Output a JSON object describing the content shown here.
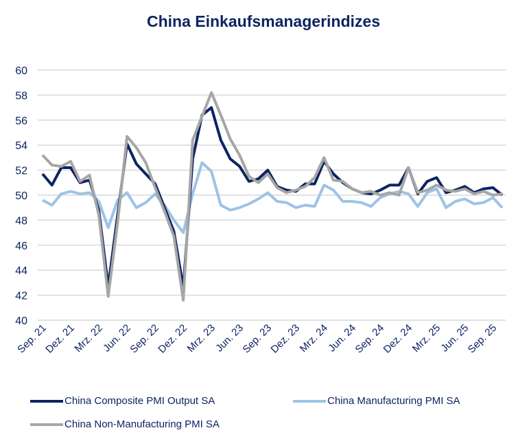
{
  "chart_data": {
    "type": "line",
    "title": "China Einkaufsmanagerindizes",
    "xlabel": "",
    "ylabel": "",
    "ylim": [
      40,
      60
    ],
    "yticks": [
      40,
      42,
      44,
      46,
      48,
      50,
      52,
      54,
      56,
      58,
      60
    ],
    "grid": true,
    "legend_position": "bottom",
    "x_tick_labels": [
      "Sep. 21",
      "Dez. 21",
      "Mrz. 22",
      "Jun. 22",
      "Sep. 22",
      "Dez. 22",
      "Mrz. 23",
      "Jun. 23",
      "Sep. 23",
      "Dez. 23",
      "Mrz. 24",
      "Jun. 24",
      "Sep. 24",
      "Dez. 24",
      "Mrz. 25",
      "Jun. 25",
      "Sep. 25"
    ],
    "x_range": [
      "Sep. 21",
      "Okt. 25"
    ],
    "series": [
      {
        "name": "China Composite PMI Output SA",
        "color": "#0c2461",
        "values": [
          51.7,
          50.8,
          52.2,
          52.2,
          51.0,
          51.2,
          48.8,
          42.7,
          48.4,
          54.1,
          52.5,
          51.7,
          50.9,
          49.0,
          47.1,
          42.6,
          52.9,
          56.4,
          57.0,
          54.4,
          52.9,
          52.3,
          51.1,
          51.3,
          52.0,
          50.7,
          50.4,
          50.3,
          50.9,
          50.9,
          52.7,
          51.7,
          51.0,
          50.5,
          50.2,
          50.1,
          50.4,
          50.8,
          50.8,
          52.2,
          50.1,
          51.1,
          51.4,
          50.2,
          50.4,
          50.7,
          50.2,
          50.5,
          50.6,
          50.0
        ]
      },
      {
        "name": "China Manufacturing PMI SA",
        "color": "#9dc3e6",
        "values": [
          49.6,
          49.2,
          50.1,
          50.3,
          50.1,
          50.2,
          49.5,
          47.4,
          49.6,
          50.2,
          49.0,
          49.4,
          50.1,
          49.2,
          48.0,
          47.0,
          50.1,
          52.6,
          51.9,
          49.2,
          48.8,
          49.0,
          49.3,
          49.7,
          50.2,
          49.5,
          49.4,
          49.0,
          49.2,
          49.1,
          50.8,
          50.4,
          49.5,
          49.5,
          49.4,
          49.1,
          49.8,
          50.1,
          50.3,
          50.1,
          49.1,
          50.2,
          50.5,
          49.0,
          49.5,
          49.7,
          49.3,
          49.4,
          49.8,
          49.0
        ]
      },
      {
        "name": "China Non-Manufacturing PMI SA",
        "color": "#a6a6a6",
        "values": [
          53.2,
          52.4,
          52.3,
          52.7,
          51.1,
          51.6,
          48.4,
          41.9,
          47.8,
          54.7,
          53.8,
          52.6,
          50.6,
          48.7,
          46.7,
          41.6,
          54.4,
          56.3,
          58.2,
          56.4,
          54.5,
          53.2,
          51.5,
          51.0,
          51.7,
          50.6,
          50.2,
          50.4,
          50.7,
          51.4,
          53.0,
          51.2,
          51.1,
          50.5,
          50.2,
          50.3,
          50.0,
          50.2,
          50.0,
          52.2,
          50.2,
          50.4,
          50.8,
          50.4,
          50.3,
          50.5,
          50.1,
          50.3,
          50.0,
          50.1
        ]
      }
    ]
  }
}
